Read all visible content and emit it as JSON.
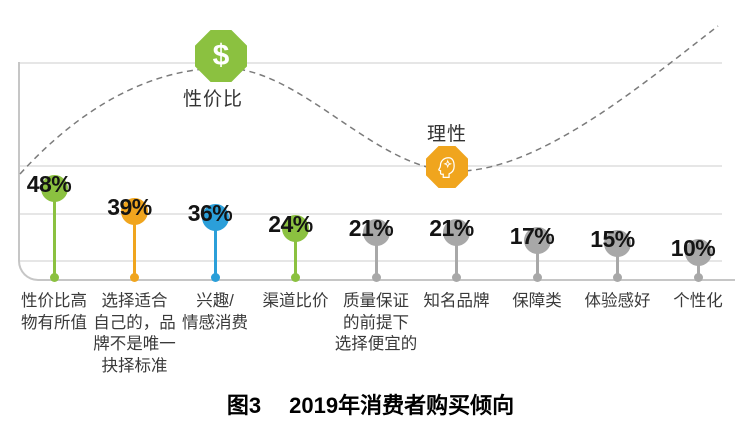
{
  "colors": {
    "green": "#8bc140",
    "amber": "#f0a51e",
    "blue": "#2b9fd9",
    "gray": "#a8a8a8",
    "curve": "#7b7b7b",
    "grid": "#e6e6e6",
    "frame": "#c6c6c6",
    "percent_text": "#141414",
    "category_text": "#3a3a3a"
  },
  "chart_data": {
    "type": "bar",
    "style": "lollipop",
    "title": "图3 2019年消费者购买倾向",
    "caption": {
      "label": "图3",
      "text": "2019年消费者购买倾向"
    },
    "unit": "%",
    "value_axis_labeled": false,
    "grid": true,
    "categories": [
      "性价比高物有所值",
      "选择适合自己的，品牌不是唯一抉择标准",
      "兴趣/情感消费",
      "渠道比价",
      "质量保证的前提下选择便宜的",
      "知名品牌",
      "保障类",
      "体验感好",
      "个性化"
    ],
    "values": [
      48,
      39,
      36,
      24,
      21,
      21,
      17,
      15,
      10
    ],
    "items": [
      {
        "label": "性价比高物有所值",
        "label_lines": [
          "性价比高",
          "物有所值"
        ],
        "value": 48,
        "display": "48%",
        "color": "green"
      },
      {
        "label": "选择适合自己的，品牌不是唯一抉择标准",
        "label_lines": [
          "选择适合",
          "自己的，品",
          "牌不是唯一",
          "抉择标准"
        ],
        "value": 39,
        "display": "39%",
        "color": "amber"
      },
      {
        "label": "兴趣/情感消费",
        "label_lines": [
          "兴趣/",
          "情感消费"
        ],
        "value": 36,
        "display": "36%",
        "color": "blue"
      },
      {
        "label": "渠道比价",
        "label_lines": [
          "渠道比价"
        ],
        "value": 24,
        "display": "24%",
        "color": "green"
      },
      {
        "label": "质量保证的前提下选择便宜的",
        "label_lines": [
          "质量保证",
          "的前提下",
          "选择便宜的"
        ],
        "value": 21,
        "display": "21%",
        "color": "gray"
      },
      {
        "label": "知名品牌",
        "label_lines": [
          "知名品牌"
        ],
        "value": 21,
        "display": "21%",
        "color": "gray"
      },
      {
        "label": "保障类",
        "label_lines": [
          "保障类"
        ],
        "value": 17,
        "display": "17%",
        "color": "gray"
      },
      {
        "label": "体验感好",
        "label_lines": [
          "体验感好"
        ],
        "value": 15,
        "display": "15%",
        "color": "gray"
      },
      {
        "label": "个性化",
        "label_lines": [
          "个性化"
        ],
        "value": 10,
        "display": "10%",
        "color": "gray"
      }
    ],
    "annotations": [
      {
        "text": "性价比",
        "glyph": "$",
        "icon": "dollar-octagon-icon",
        "color": "green",
        "position": "curve-peak"
      },
      {
        "text": "理性",
        "icon": "rational-head-octagon-icon",
        "color": "amber",
        "position": "curve-trough"
      }
    ],
    "curve": {
      "style": "dashed",
      "shape": "rises to peak at 性价比, dips to trough at 理性, rises to top-right"
    }
  }
}
